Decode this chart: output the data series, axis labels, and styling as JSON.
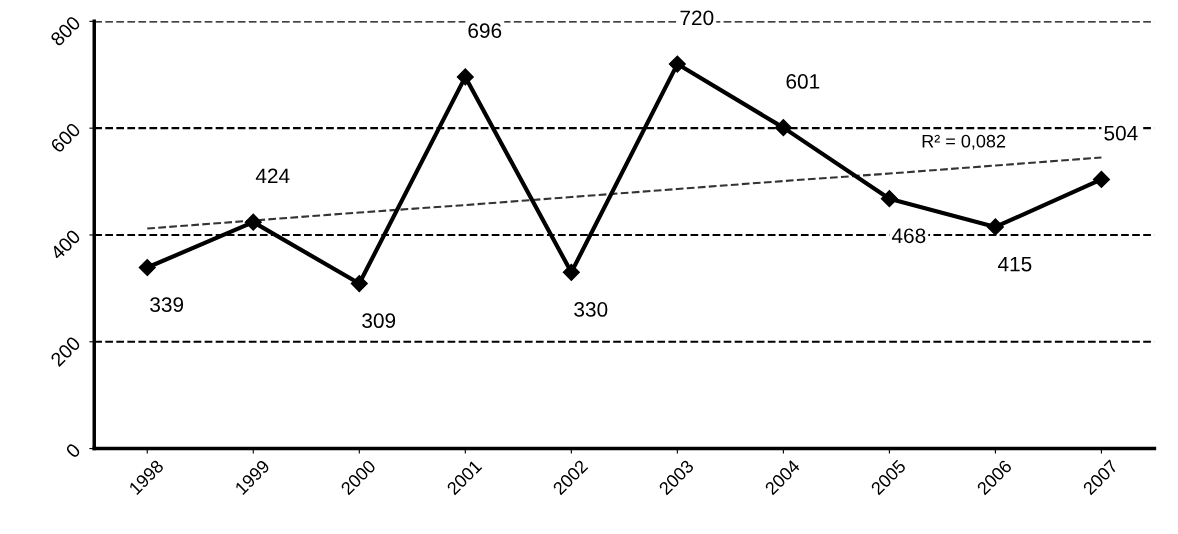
{
  "chart_data": {
    "type": "line",
    "categories": [
      "1998",
      "1999",
      "2000",
      "2001",
      "2002",
      "2003",
      "2004",
      "2005",
      "2006",
      "2007"
    ],
    "series": [
      {
        "color": "#000000",
        "values": [
          339,
          424,
          309,
          696,
          330,
          720,
          601,
          468,
          415,
          504
        ],
        "marker": "diamond",
        "line_style": "solid",
        "data_labels": true
      },
      {
        "color": "#333333",
        "values": [
          412,
          427,
          442,
          456,
          471,
          486,
          501,
          515,
          530,
          545
        ],
        "marker": "none",
        "line_style": "dashed"
      }
    ],
    "ylim": [
      0,
      800
    ],
    "yticks": [
      0,
      200,
      400,
      600,
      800
    ],
    "grid": "y",
    "legend": false,
    "annotations": [
      "R² = 0,082"
    ]
  }
}
